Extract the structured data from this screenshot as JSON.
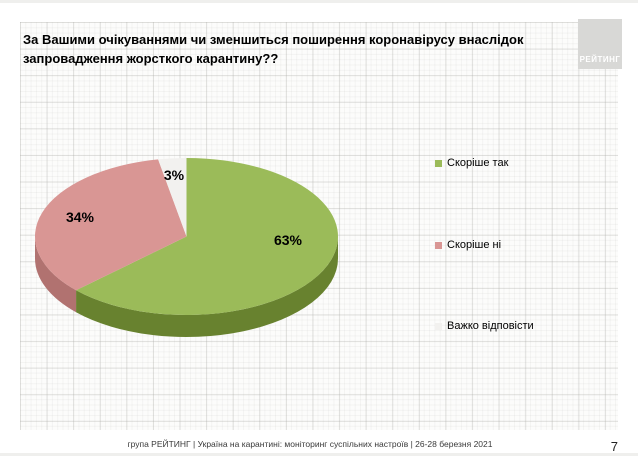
{
  "slide": {
    "title": "За Вашими очікуваннями чи зменшиться поширення коронавірусу внаслідок\nзапровадження жорсткого карантину??",
    "logo_text": "РЕЙТИНГ",
    "footer": "група РЕЙТИНГ | Україна на карантині: моніторинг суспільних настроїв | 26-28 березня 2021",
    "page_number": "7"
  },
  "chart_data": {
    "type": "pie",
    "style": "3d",
    "title": "За Вашими очікуваннями чи зменшиться поширення коронавірусу внаслідок запровадження жорсткого карантину??",
    "labels": [
      "Скоріше так",
      "Скоріше ні",
      "Важко відповісти"
    ],
    "values": [
      63,
      34,
      3
    ],
    "value_labels": [
      "63%",
      "34%",
      "3%"
    ],
    "colors": [
      "#9BBB59",
      "#D99694",
      "#F2F1EF"
    ],
    "side_colors": [
      "#68822F",
      "#B17270",
      "#D8D8D4"
    ],
    "start_angle_deg": 0,
    "direction": "clockwise",
    "legend_position": "right"
  }
}
